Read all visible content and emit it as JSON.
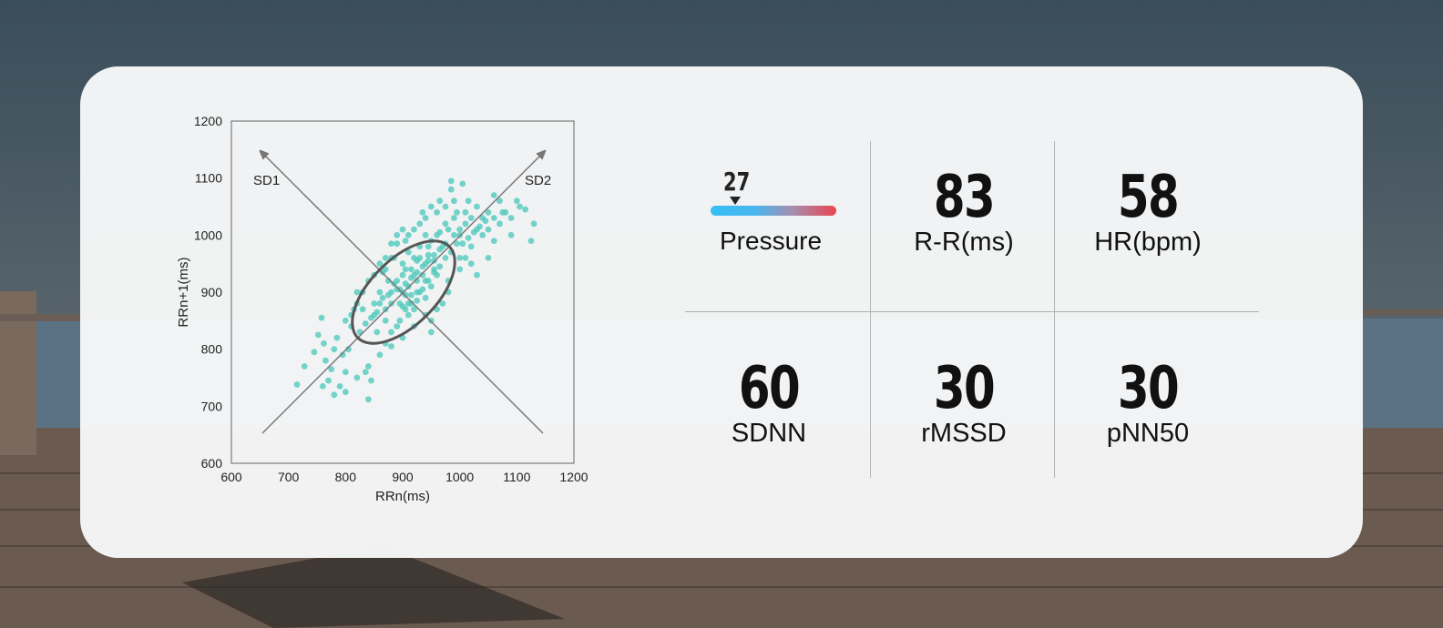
{
  "chart_data": {
    "type": "scatter",
    "title": "",
    "xlabel": "RRn(ms)",
    "ylabel": "RRn+1(ms)",
    "xlim": [
      600,
      1200
    ],
    "ylim": [
      600,
      1200
    ],
    "xticks": [
      "600",
      "700",
      "800",
      "900",
      "1000",
      "1100",
      "1200"
    ],
    "yticks": [
      "600",
      "700",
      "800",
      "900",
      "1000",
      "1100",
      "1200"
    ],
    "annotations": [
      "SD1",
      "SD2"
    ],
    "points": [
      [
        715,
        738
      ],
      [
        728,
        770
      ],
      [
        745,
        795
      ],
      [
        752,
        825
      ],
      [
        758,
        855
      ],
      [
        762,
        810
      ],
      [
        765,
        780
      ],
      [
        770,
        745
      ],
      [
        775,
        765
      ],
      [
        780,
        800
      ],
      [
        785,
        820
      ],
      [
        790,
        735
      ],
      [
        795,
        790
      ],
      [
        800,
        760
      ],
      [
        805,
        800
      ],
      [
        810,
        840
      ],
      [
        815,
        870
      ],
      [
        820,
        900
      ],
      [
        825,
        830
      ],
      [
        830,
        870
      ],
      [
        835,
        760
      ],
      [
        840,
        712
      ],
      [
        845,
        745
      ],
      [
        850,
        880
      ],
      [
        855,
        830
      ],
      [
        860,
        900
      ],
      [
        865,
        935
      ],
      [
        870,
        850
      ],
      [
        875,
        920
      ],
      [
        880,
        880
      ],
      [
        885,
        960
      ],
      [
        890,
        905
      ],
      [
        895,
        850
      ],
      [
        900,
        930
      ],
      [
        905,
        990
      ],
      [
        910,
        880
      ],
      [
        915,
        940
      ],
      [
        920,
        1010
      ],
      [
        925,
        900
      ],
      [
        930,
        960
      ],
      [
        935,
        1040
      ],
      [
        940,
        920
      ],
      [
        945,
        980
      ],
      [
        950,
        1050
      ],
      [
        955,
        940
      ],
      [
        960,
        1000
      ],
      [
        965,
        1060
      ],
      [
        970,
        980
      ],
      [
        975,
        1020
      ],
      [
        980,
        900
      ],
      [
        985,
        1080
      ],
      [
        990,
        1000
      ],
      [
        995,
        1040
      ],
      [
        1000,
        960
      ],
      [
        1005,
        1090
      ],
      [
        1010,
        1020
      ],
      [
        1015,
        1060
      ],
      [
        1020,
        980
      ],
      [
        1030,
        1050
      ],
      [
        1040,
        1000
      ],
      [
        1050,
        1040
      ],
      [
        1060,
        1070
      ],
      [
        1070,
        1020
      ],
      [
        1080,
        1040
      ],
      [
        1090,
        1000
      ],
      [
        1100,
        1060
      ],
      [
        1115,
        1045
      ],
      [
        1125,
        990
      ],
      [
        1130,
        1020
      ],
      [
        985,
        1095
      ],
      [
        900,
        875
      ],
      [
        910,
        860
      ],
      [
        880,
        830
      ],
      [
        870,
        810
      ],
      [
        890,
        840
      ],
      [
        920,
        870
      ],
      [
        940,
        890
      ],
      [
        950,
        910
      ],
      [
        960,
        930
      ],
      [
        930,
        900
      ],
      [
        895,
        905
      ],
      [
        905,
        915
      ],
      [
        915,
        925
      ],
      [
        925,
        935
      ],
      [
        935,
        945
      ],
      [
        945,
        955
      ],
      [
        955,
        965
      ],
      [
        965,
        975
      ],
      [
        975,
        985
      ],
      [
        870,
        870
      ],
      [
        860,
        880
      ],
      [
        850,
        860
      ],
      [
        880,
        900
      ],
      [
        890,
        920
      ],
      [
        900,
        950
      ],
      [
        910,
        970
      ],
      [
        920,
        960
      ],
      [
        930,
        980
      ],
      [
        940,
        1000
      ],
      [
        950,
        990
      ],
      [
        845,
        855
      ],
      [
        835,
        845
      ],
      [
        855,
        865
      ],
      [
        865,
        890
      ],
      [
        875,
        895
      ],
      [
        885,
        915
      ],
      [
        905,
        940
      ],
      [
        925,
        955
      ],
      [
        945,
        965
      ],
      [
        965,
        1005
      ],
      [
        900,
        900
      ],
      [
        905,
        895
      ],
      [
        895,
        880
      ],
      [
        910,
        910
      ],
      [
        915,
        895
      ],
      [
        920,
        930
      ],
      [
        925,
        920
      ],
      [
        935,
        930
      ],
      [
        940,
        950
      ],
      [
        955,
        955
      ],
      [
        980,
        1010
      ],
      [
        990,
        1030
      ],
      [
        1000,
        1010
      ],
      [
        1010,
        1040
      ],
      [
        1020,
        1030
      ],
      [
        1030,
        1010
      ],
      [
        1040,
        1030
      ],
      [
        1050,
        1010
      ],
      [
        1060,
        990
      ],
      [
        1070,
        1060
      ],
      [
        870,
        940
      ],
      [
        880,
        960
      ],
      [
        890,
        985
      ],
      [
        900,
        1010
      ],
      [
        910,
        1000
      ],
      [
        930,
        1020
      ],
      [
        940,
        1030
      ],
      [
        960,
        1040
      ],
      [
        975,
        1050
      ],
      [
        990,
        1060
      ],
      [
        940,
        860
      ],
      [
        960,
        870
      ],
      [
        970,
        880
      ],
      [
        950,
        850
      ],
      [
        980,
        920
      ],
      [
        1000,
        940
      ],
      [
        1010,
        960
      ],
      [
        1020,
        950
      ],
      [
        1030,
        930
      ],
      [
        1050,
        960
      ],
      [
        830,
        900
      ],
      [
        840,
        920
      ],
      [
        820,
        880
      ],
      [
        810,
        860
      ],
      [
        800,
        850
      ],
      [
        860,
        950
      ],
      [
        850,
        930
      ],
      [
        870,
        960
      ],
      [
        880,
        985
      ],
      [
        890,
        1000
      ],
      [
        1000,
        1000
      ],
      [
        1005,
        985
      ],
      [
        1015,
        995
      ],
      [
        1025,
        1005
      ],
      [
        1035,
        1015
      ],
      [
        1045,
        1025
      ],
      [
        1060,
        1030
      ],
      [
        1075,
        1040
      ],
      [
        1090,
        1030
      ],
      [
        1105,
        1050
      ],
      [
        760,
        735
      ],
      [
        780,
        720
      ],
      [
        800,
        725
      ],
      [
        820,
        750
      ],
      [
        840,
        770
      ],
      [
        860,
        790
      ],
      [
        880,
        805
      ],
      [
        900,
        820
      ],
      [
        920,
        840
      ],
      [
        950,
        830
      ],
      [
        905,
        870
      ],
      [
        915,
        880
      ],
      [
        925,
        885
      ],
      [
        935,
        905
      ],
      [
        945,
        920
      ],
      [
        955,
        935
      ],
      [
        965,
        945
      ],
      [
        975,
        960
      ],
      [
        985,
        970
      ],
      [
        995,
        985
      ]
    ]
  }
}
